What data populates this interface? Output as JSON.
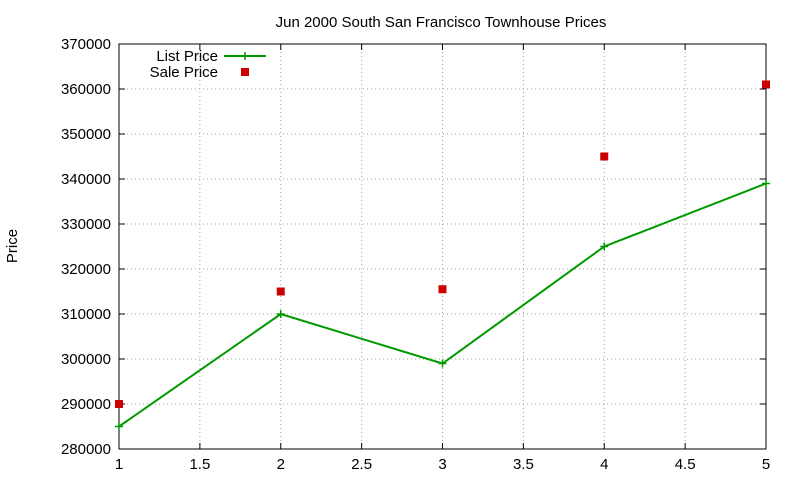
{
  "chart_data": {
    "type": "line",
    "title": "Jun 2000 South San Francisco Townhouse Prices",
    "xlabel": "",
    "ylabel": "Price",
    "xlim": [
      1,
      5
    ],
    "ylim": [
      280000,
      370000
    ],
    "x_ticks": [
      1,
      1.5,
      2,
      2.5,
      3,
      3.5,
      4,
      4.5,
      5
    ],
    "y_ticks": [
      280000,
      290000,
      300000,
      310000,
      320000,
      330000,
      340000,
      350000,
      360000,
      370000
    ],
    "grid": true,
    "legend_position": "top-left",
    "series": [
      {
        "name": "List Price",
        "style": "line+cross",
        "color": "#009900",
        "x": [
          1,
          2,
          3,
          4,
          5
        ],
        "y": [
          285000,
          310000,
          299000,
          325000,
          339000
        ]
      },
      {
        "name": "Sale Price",
        "style": "square",
        "color": "#cc0000",
        "x": [
          1,
          2,
          3,
          4,
          5
        ],
        "y": [
          290000,
          315000,
          315500,
          345000,
          361000
        ]
      }
    ]
  }
}
